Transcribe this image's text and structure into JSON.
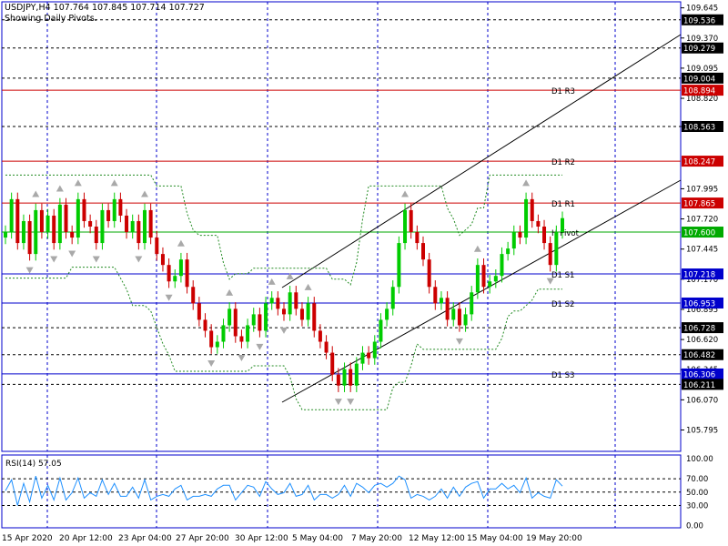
{
  "header": {
    "title": "USDJPY,H4  107.764 107.845 107.714 107.727",
    "subtitle": "Showing Daily Pivots."
  },
  "rsi_label": "RSI(14) 57.05",
  "colors": {
    "grid": "#0000cc",
    "bull": "#00cc00",
    "bear": "#cc0000",
    "red_level": "#cc0000",
    "green_level": "#00aa00",
    "blue_level": "#0000cc",
    "rsi_line": "#1e90ff",
    "band": "#228b22",
    "channel": "#000000",
    "fractal": "#a9a9a9"
  },
  "chart_data": {
    "type": "candlestick",
    "symbol": "USDJPY",
    "timeframe": "H4",
    "last_ohlc": {
      "open": 107.764,
      "high": 107.845,
      "low": 107.714,
      "close": 107.727
    },
    "ylim": [
      105.6,
      109.7
    ],
    "price_ticks": [
      "109.645",
      "109.370",
      "109.095",
      "108.820",
      "108.563",
      "107.995",
      "107.720",
      "107.445",
      "107.170",
      "106.895",
      "106.620",
      "106.345",
      "106.070",
      "105.795"
    ],
    "x_ticks": [
      "15 Apr 2020",
      "20 Apr 12:00",
      "23 Apr 04:00",
      "27 Apr 20:00",
      "30 Apr 12:00",
      "5 May 04:00",
      "7 May 20:00",
      "12 May 12:00",
      "15 May 04:00",
      "19 May 20:00"
    ],
    "levels": [
      {
        "value": 109.536,
        "label": "109.536",
        "style": "dash",
        "color": "black",
        "tag": ""
      },
      {
        "value": 109.279,
        "label": "109.279",
        "style": "dash",
        "color": "black",
        "tag": ""
      },
      {
        "value": 109.004,
        "label": "109.004",
        "style": "dash",
        "color": "black",
        "tag": ""
      },
      {
        "value": 108.894,
        "label": "108.894",
        "style": "solid",
        "color": "red",
        "tag": "D1 R3"
      },
      {
        "value": 108.563,
        "label": "108.563",
        "style": "dash",
        "color": "black",
        "tag": ""
      },
      {
        "value": 108.247,
        "label": "108.247",
        "style": "solid",
        "color": "red",
        "tag": "D1 R2"
      },
      {
        "value": 107.865,
        "label": "107.865",
        "style": "solid",
        "color": "red",
        "tag": "D1 R1"
      },
      {
        "value": 107.6,
        "label": "107.600",
        "style": "solid",
        "color": "green",
        "tag": "H Pivot"
      },
      {
        "value": 107.218,
        "label": "107.218",
        "style": "solid",
        "color": "blue",
        "tag": "D1 S1"
      },
      {
        "value": 106.953,
        "label": "106.953",
        "style": "solid",
        "color": "blue",
        "tag": "D1 S2"
      },
      {
        "value": 106.728,
        "label": "106.728",
        "style": "dash",
        "color": "black",
        "tag": ""
      },
      {
        "value": 106.482,
        "label": "106.482",
        "style": "dash",
        "color": "black",
        "tag": ""
      },
      {
        "value": 106.306,
        "label": "106.306",
        "style": "solid",
        "color": "blue",
        "tag": "D1 S3"
      },
      {
        "value": 106.211,
        "label": "106.211",
        "style": "dash",
        "color": "black",
        "tag": ""
      }
    ],
    "channel": {
      "upper": [
        [
          107.12,
          8
        ],
        [
          109.48,
          29
        ]
      ],
      "lower": [
        [
          106.02,
          8
        ],
        [
          108.35,
          29
        ]
      ]
    },
    "closes": [
      107.6,
      107.9,
      107.5,
      107.7,
      107.4,
      107.8,
      107.6,
      107.75,
      107.5,
      107.85,
      107.6,
      107.55,
      107.9,
      107.7,
      107.65,
      107.5,
      107.8,
      107.7,
      107.9,
      107.75,
      107.6,
      107.7,
      107.5,
      107.8,
      107.55,
      107.4,
      107.3,
      107.15,
      107.2,
      107.35,
      107.1,
      106.95,
      106.8,
      106.7,
      106.55,
      106.6,
      106.75,
      106.9,
      106.65,
      106.6,
      106.75,
      106.85,
      106.7,
      106.95,
      107.0,
      106.9,
      106.85,
      107.05,
      106.9,
      106.8,
      106.95,
      106.7,
      106.6,
      106.5,
      106.3,
      106.2,
      106.35,
      106.2,
      106.4,
      106.5,
      106.45,
      106.6,
      106.8,
      106.9,
      107.1,
      107.5,
      107.8,
      107.6,
      107.5,
      107.35,
      107.1,
      106.95,
      107.0,
      106.8,
      106.9,
      106.75,
      106.85,
      107.05,
      107.3,
      107.1,
      107.15,
      107.2,
      107.4,
      107.45,
      107.6,
      107.55,
      107.9,
      107.7,
      107.65,
      107.5,
      107.3,
      107.6,
      107.727
    ],
    "rsi": {
      "levels": [
        "100.00",
        "70.00",
        "50.00",
        "30.00",
        "0.00"
      ],
      "value": 57.05
    }
  }
}
